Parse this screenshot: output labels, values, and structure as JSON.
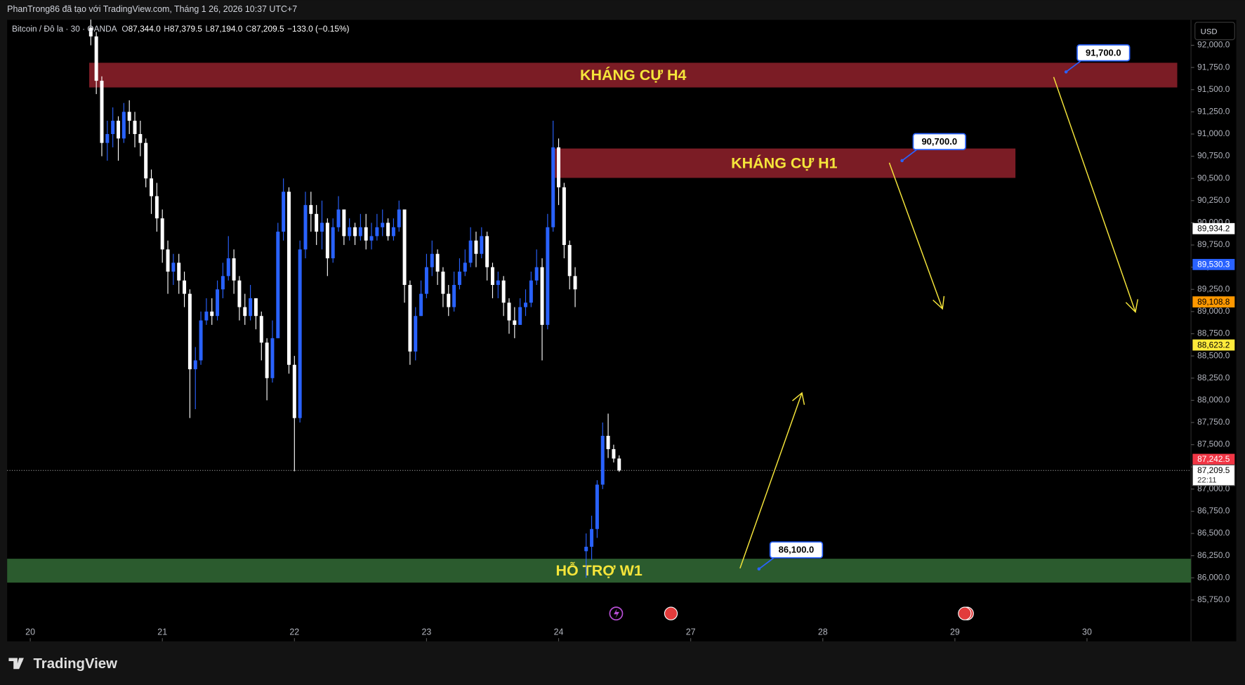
{
  "header": {
    "caption": "PhanTrong86 đã tạo với TradingView.com, Tháng 1 26, 2026 10:37 UTC+7"
  },
  "toolbar": {
    "currency": "USD"
  },
  "footer": {
    "brand": "TradingView"
  },
  "chart_data": {
    "type": "candlestick",
    "legend": {
      "symbol": "Bitcoin / Đô la · 30 · OANDA",
      "items": [
        {
          "key": "O",
          "value": "87,344.0"
        },
        {
          "key": "H",
          "value": "87,379.5"
        },
        {
          "key": "L",
          "value": "87,194.0"
        },
        {
          "key": "C",
          "value": "87,209.5"
        }
      ],
      "change": "−133.0 (−0.15%)"
    },
    "up_color": "#2962ff",
    "down_color": "#ffffff",
    "x": [
      11,
      12,
      13,
      14,
      15,
      16,
      17,
      18,
      19,
      20,
      21,
      22,
      23,
      24,
      25,
      26,
      27,
      28,
      29,
      30,
      31,
      32,
      33,
      34,
      35,
      36,
      37,
      38,
      39,
      40,
      41,
      42,
      43,
      44,
      45,
      46,
      47,
      48,
      49,
      50,
      51,
      52,
      53,
      54,
      55,
      56,
      57,
      58,
      59,
      60,
      61,
      62,
      63,
      64,
      65,
      66,
      67,
      68,
      69,
      70,
      71,
      72,
      73,
      74,
      75,
      76,
      77,
      78,
      79,
      80,
      81,
      82,
      83,
      84,
      85,
      86,
      87,
      88,
      89,
      90,
      91,
      92,
      93,
      94,
      95,
      96,
      97,
      98,
      99,
      101,
      102,
      103,
      104,
      105,
      106,
      107
    ],
    "open": [
      92200,
      92100,
      91600,
      90900,
      91000,
      91150,
      90950,
      91250,
      91150,
      91000,
      90900,
      90500,
      90300,
      90050,
      89700,
      89450,
      89550,
      89350,
      89200,
      88350,
      88450,
      88900,
      89000,
      88950,
      89250,
      89400,
      89600,
      89350,
      89050,
      88950,
      89150,
      88950,
      88650,
      88250,
      88700,
      89900,
      90350,
      88400,
      87800,
      89700,
      90200,
      90100,
      89900,
      90000,
      89600,
      89950,
      90150,
      89850,
      89950,
      89850,
      89950,
      89800,
      89850,
      89950,
      90000,
      89850,
      89950,
      90150,
      89300,
      88550,
      88950,
      89200,
      89500,
      89650,
      89450,
      89200,
      89050,
      89300,
      89450,
      89550,
      89800,
      89650,
      89850,
      89500,
      89300,
      89350,
      89100,
      88900,
      88850,
      89050,
      89100,
      89350,
      89500,
      88850,
      89950,
      90850,
      90400,
      89750,
      89400,
      86300,
      86350,
      86550,
      87050,
      87600,
      87450,
      87344
    ],
    "high": [
      92290,
      92150,
      91650,
      91150,
      91300,
      91200,
      91350,
      91380,
      91250,
      91150,
      90950,
      90600,
      90450,
      90150,
      89800,
      89650,
      89650,
      89450,
      89250,
      88600,
      89000,
      89150,
      89150,
      89350,
      89550,
      89850,
      89700,
      89400,
      89200,
      89300,
      89150,
      89000,
      88700,
      88900,
      90000,
      90500,
      90400,
      88500,
      89800,
      90350,
      90350,
      90200,
      90250,
      90050,
      90050,
      90300,
      90150,
      90050,
      90000,
      90100,
      90100,
      90000,
      90100,
      90150,
      90050,
      90050,
      90250,
      90150,
      89350,
      89050,
      89350,
      89650,
      89800,
      89700,
      89500,
      89300,
      89450,
      89600,
      89700,
      89950,
      89900,
      89950,
      89900,
      89550,
      89450,
      89400,
      89150,
      89050,
      89150,
      89250,
      89450,
      89700,
      89600,
      90100,
      91150,
      90950,
      90450,
      89800,
      89500,
      86500,
      86700,
      87100,
      87750,
      87850,
      87500,
      87379.5
    ],
    "low": [
      92000,
      91450,
      90750,
      90700,
      90850,
      90700,
      90900,
      91000,
      90850,
      90750,
      90400,
      90100,
      89900,
      89550,
      89200,
      89300,
      89200,
      89050,
      87800,
      87900,
      88400,
      88850,
      88850,
      88900,
      89150,
      89350,
      89200,
      88900,
      88850,
      88900,
      88800,
      88450,
      88000,
      88200,
      88700,
      89800,
      88300,
      87200,
      87750,
      89600,
      89900,
      89750,
      89700,
      89400,
      89550,
      89900,
      89750,
      89800,
      89750,
      89800,
      89700,
      89700,
      89800,
      89850,
      89800,
      89800,
      89900,
      89100,
      88400,
      88450,
      88950,
      89150,
      89400,
      89300,
      89050,
      88950,
      89000,
      89250,
      89400,
      89500,
      89500,
      89600,
      89350,
      89150,
      89150,
      88950,
      88750,
      88700,
      88850,
      88950,
      89050,
      89300,
      88450,
      88800,
      89900,
      90200,
      89600,
      89250,
      89050,
      86000,
      86200,
      86450,
      87000,
      87350,
      87300,
      87194
    ],
    "close": [
      92100,
      91600,
      90900,
      91000,
      91150,
      90950,
      91250,
      91150,
      91000,
      90900,
      90500,
      90300,
      90050,
      89700,
      89450,
      89550,
      89350,
      89200,
      88350,
      88450,
      88900,
      89000,
      88950,
      89250,
      89400,
      89600,
      89350,
      89050,
      88950,
      89150,
      88950,
      88650,
      88250,
      88700,
      89900,
      90350,
      88400,
      87800,
      89700,
      90200,
      90100,
      89900,
      90000,
      89600,
      89950,
      90150,
      89850,
      89950,
      89850,
      89950,
      89800,
      89850,
      89950,
      90000,
      89850,
      89950,
      90150,
      89300,
      88550,
      88950,
      89200,
      89500,
      89650,
      89450,
      89200,
      89050,
      89300,
      89450,
      89550,
      89800,
      89650,
      89850,
      89500,
      89300,
      89350,
      89100,
      88900,
      88850,
      89050,
      89100,
      89350,
      89500,
      88850,
      89950,
      90850,
      90400,
      89750,
      89400,
      89250,
      86350,
      86550,
      87050,
      87600,
      87450,
      87344,
      87209.5
    ],
    "xlim": [
      -4.2,
      210.9
    ],
    "xticks": [
      {
        "value": 0,
        "label": "20"
      },
      {
        "value": 24,
        "label": "21"
      },
      {
        "value": 48,
        "label": "22"
      },
      {
        "value": 72,
        "label": "23"
      },
      {
        "value": 96,
        "label": "24"
      },
      {
        "value": 120,
        "label": "27"
      },
      {
        "value": 144,
        "label": "28"
      },
      {
        "value": 168,
        "label": "29"
      },
      {
        "value": 192,
        "label": "30"
      }
    ],
    "ylim": [
      85285,
      92286
    ],
    "yticks": [
      {
        "value": 85750,
        "label": "85,750.0"
      },
      {
        "value": 86000,
        "label": "86,000.0"
      },
      {
        "value": 86250,
        "label": "86,250.0"
      },
      {
        "value": 86500,
        "label": "86,500.0"
      },
      {
        "value": 86750,
        "label": "86,750.0"
      },
      {
        "value": 87000,
        "label": "87,000.0"
      },
      {
        "value": 87250,
        "label": "87,250.0"
      },
      {
        "value": 87500,
        "label": "87,500.0"
      },
      {
        "value": 87750,
        "label": "87,750.0"
      },
      {
        "value": 88000,
        "label": "88,000.0"
      },
      {
        "value": 88250,
        "label": "88,250.0"
      },
      {
        "value": 88500,
        "label": "88,500.0"
      },
      {
        "value": 88750,
        "label": "88,750.0"
      },
      {
        "value": 89000,
        "label": "89,000.0"
      },
      {
        "value": 89250,
        "label": "89,250.0"
      },
      {
        "value": 89500,
        "label": "89,500.0"
      },
      {
        "value": 89750,
        "label": "89,750.0"
      },
      {
        "value": 90000,
        "label": "90,000.0"
      },
      {
        "value": 90250,
        "label": "90,250.0"
      },
      {
        "value": 90500,
        "label": "90,500.0"
      },
      {
        "value": 90750,
        "label": "90,750.0"
      },
      {
        "value": 91000,
        "label": "91,000.0"
      },
      {
        "value": 91250,
        "label": "91,250.0"
      },
      {
        "value": 91500,
        "label": "91,500.0"
      },
      {
        "value": 91750,
        "label": "91,750.0"
      },
      {
        "value": 92000,
        "label": "92,000.0"
      }
    ],
    "zones": [
      {
        "label": "KHÁNG CỰ H4",
        "low": 91525,
        "high": 91803,
        "x_start": 10.7,
        "x_end": 208.4,
        "color": "#7b1c25"
      },
      {
        "label": "KHÁNG CỰ H1",
        "low": 90506,
        "high": 90837,
        "x_start": 95.0,
        "x_end": 179.0,
        "color": "#7b1c25"
      },
      {
        "label": "HỖ TRỢ W1",
        "low": 85946,
        "high": 86215,
        "x_start": -4.2,
        "x_end": 210.9,
        "color": "#2b5b2e"
      }
    ],
    "callouts": [
      {
        "value": 91700,
        "label": "91,700.0",
        "x": 188.2
      },
      {
        "value": 90700,
        "label": "90,700.0",
        "x": 158.4
      },
      {
        "value": 86100,
        "label": "86,100.0",
        "x": 132.4
      }
    ],
    "price_labels": [
      {
        "value": 89934.2,
        "label": "89,934.2",
        "color": "#ffffff",
        "text_color": "#000000"
      },
      {
        "value": 89530.3,
        "label": "89,530.3",
        "color": "#2962ff",
        "text_color": "#ffffff"
      },
      {
        "value": 89108.8,
        "label": "89,108.8",
        "color": "#ff9800",
        "text_color": "#000000"
      },
      {
        "value": 88623.2,
        "label": "88,623.2",
        "color": "#ffeb3b",
        "text_color": "#000000"
      },
      {
        "value": 87242.5,
        "label": "87,242.5",
        "color": "#f23645",
        "text_color": "#ffffff"
      }
    ],
    "current_price": {
      "value": 87209.5,
      "label": "87,209.5",
      "countdown": "22:11"
    }
  }
}
